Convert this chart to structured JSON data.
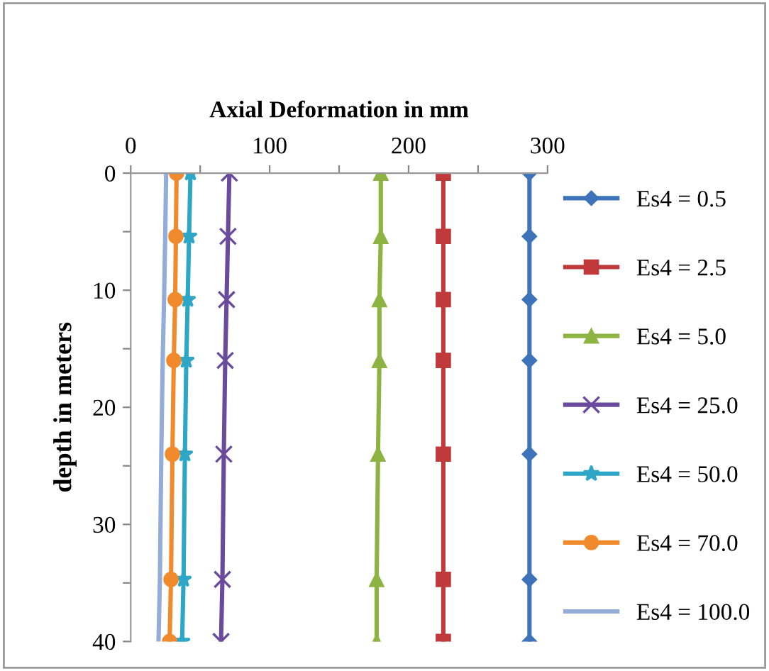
{
  "chart_data": {
    "type": "line",
    "xlabel": "Axial Deformation in mm",
    "ylabel": "depth in meters",
    "xlim": [
      0,
      300
    ],
    "xticks": [
      0,
      {
        "value": 50,
        "label": null
      },
      100,
      {
        "value": 150,
        "label": null
      },
      200,
      {
        "value": 250,
        "label": null
      },
      300
    ],
    "ylim": [
      40,
      0
    ],
    "yticks": [
      0,
      {
        "value": 5,
        "label": null
      },
      10,
      {
        "value": 15,
        "label": null
      },
      20,
      {
        "value": 25,
        "label": null
      },
      30,
      {
        "value": 35,
        "label": null
      },
      40
    ],
    "grid": false,
    "legend": "right",
    "line_style": "solid",
    "series": [
      {
        "name": "Es4 = 0.5",
        "color": "#3d73b9",
        "marker": "diamond",
        "x": [
          287,
          287,
          287,
          287,
          287,
          287,
          287
        ],
        "values": [
          0,
          5.4,
          10.8,
          16,
          24,
          34.7,
          40
        ]
      },
      {
        "name": "Es4 = 2.5",
        "color": "#c0393b",
        "marker": "square",
        "x": [
          225,
          225,
          225,
          225,
          225,
          225,
          225
        ],
        "values": [
          0,
          5.4,
          10.8,
          16,
          24,
          34.7,
          40
        ]
      },
      {
        "name": "Es4 = 5.0",
        "color": "#8db443",
        "marker": "triangle",
        "x": [
          180,
          180,
          179,
          179,
          178,
          177,
          177
        ],
        "values": [
          0,
          5.4,
          10.8,
          16,
          24,
          34.7,
          40
        ]
      },
      {
        "name": "Es4 = 25.0",
        "color": "#6a4a9c",
        "marker": "cross",
        "x": [
          71,
          70,
          69,
          68,
          67,
          66,
          65
        ],
        "values": [
          0,
          5.4,
          10.8,
          16,
          24,
          34.7,
          40
        ]
      },
      {
        "name": "Es4 = 50.0",
        "color": "#2ea6c6",
        "marker": "star",
        "x": [
          43,
          42,
          41,
          40,
          39,
          38,
          37
        ],
        "values": [
          0,
          5.4,
          10.8,
          16,
          24,
          34.7,
          40
        ]
      },
      {
        "name": "Es4 = 70.0",
        "color": "#f08a2c",
        "marker": "circle",
        "x": [
          33,
          32.5,
          32,
          31,
          30,
          29,
          28
        ],
        "values": [
          0,
          5.4,
          10.8,
          16,
          24,
          34.7,
          40
        ]
      },
      {
        "name": "Es4 = 100.0",
        "color": "#94acd8",
        "marker": "none",
        "x": [
          25.5,
          24.8,
          24,
          23,
          22,
          21,
          20
        ],
        "values": [
          0,
          5.4,
          10.8,
          16,
          24,
          34.7,
          40
        ]
      }
    ]
  }
}
